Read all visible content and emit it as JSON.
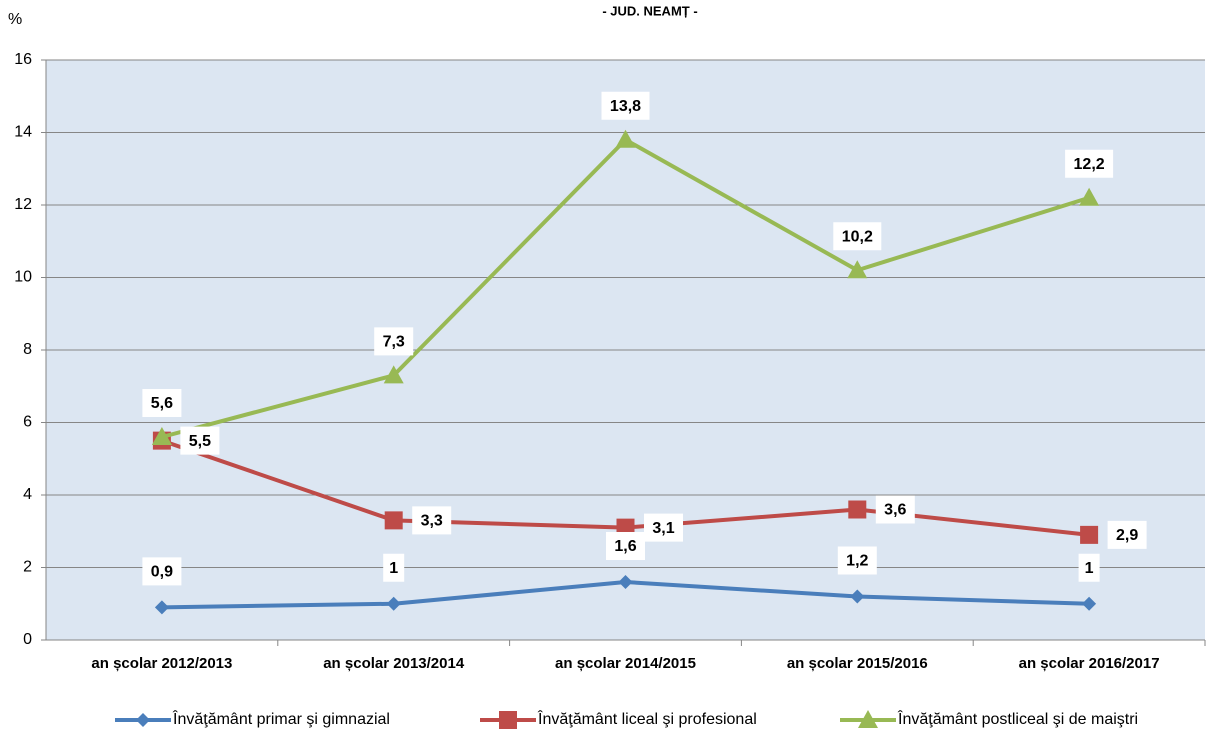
{
  "chart_data": {
    "type": "line",
    "title": "- JUD. NEAMȚ -",
    "y_label": "%",
    "categories": [
      "an școlar 2012/2013",
      "an școlar 2013/2014",
      "an școlar 2014/2015",
      "an școlar 2015/2016",
      "an școlar 2016/2017"
    ],
    "series": [
      {
        "name": "Învăţământ primar şi gimnazial",
        "color": "#4a7ebb",
        "marker": "diamond",
        "values": [
          0.9,
          1,
          1.6,
          1.2,
          1
        ],
        "value_labels": [
          "0,9",
          "1",
          "1,6",
          "1,2",
          "1"
        ]
      },
      {
        "name": "Învăţământ liceal şi profesional",
        "color": "#be4b48",
        "marker": "square",
        "values": [
          5.5,
          3.3,
          3.1,
          3.6,
          2.9
        ],
        "value_labels": [
          "5,5",
          "3,3",
          "3,1",
          "3,6",
          "2,9"
        ]
      },
      {
        "name": "Învăţământ postliceal şi de maiştri",
        "color": "#98b954",
        "marker": "triangle",
        "values": [
          5.6,
          7.3,
          13.8,
          10.2,
          12.2
        ],
        "value_labels": [
          "5,6",
          "7,3",
          "13,8",
          "10,2",
          "12,2"
        ]
      }
    ],
    "ylim": [
      0,
      16
    ],
    "yticks": [
      0,
      2,
      4,
      6,
      8,
      10,
      12,
      14,
      16
    ],
    "grid": true,
    "legend": "bottom"
  }
}
